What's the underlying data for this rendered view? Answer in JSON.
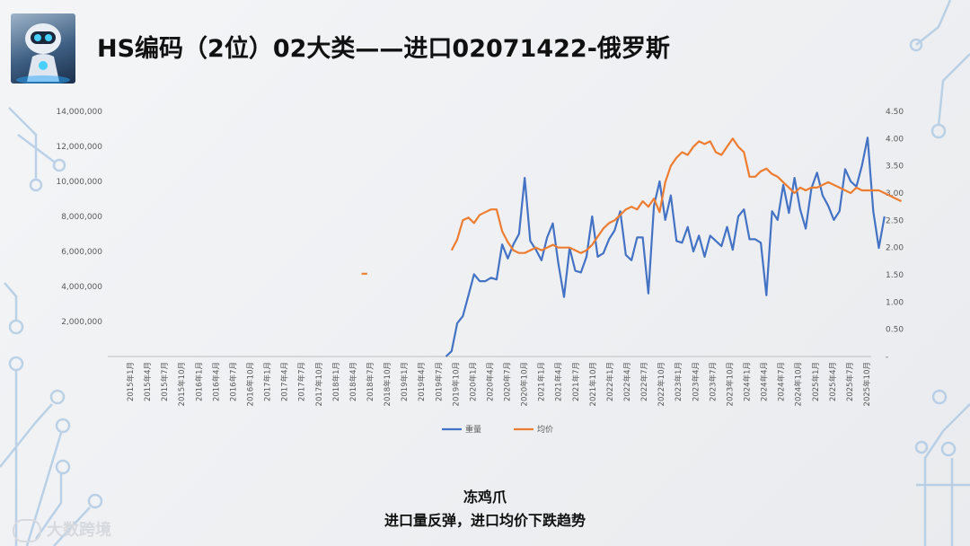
{
  "title": "HS编码（2位）02大类——进口02071422-俄罗斯",
  "caption": {
    "line1": "冻鸡爪",
    "line2": "进口量反弹，进口均价下跌趋势"
  },
  "brand_text": "大数跨境",
  "icons": [
    "robot-logo-icon",
    "circuit-decoration-icon",
    "brand-watermark-icon"
  ],
  "colors": {
    "weight": "#4472c4",
    "price": "#ed7d31"
  },
  "chart_data": {
    "type": "line",
    "x_labels": [
      "2015年1月",
      "2015年4月",
      "2015年7月",
      "2015年10月",
      "2016年1月",
      "2016年4月",
      "2016年7月",
      "2016年10月",
      "2017年1月",
      "2017年4月",
      "2017年7月",
      "2017年10月",
      "2018年1月",
      "2018年4月",
      "2018年7月",
      "2018年10月",
      "2019年1月",
      "2019年4月",
      "2019年7月",
      "2019年10月",
      "2020年1月",
      "2020年4月",
      "2020年7月",
      "2020年10月",
      "2021年1月",
      "2021年4月",
      "2021年7月",
      "2021年10月",
      "2022年1月",
      "2022年4月",
      "2022年7月",
      "2022年10月",
      "2023年1月",
      "2023年4月",
      "2023年7月",
      "2023年10月",
      "2024年1月",
      "2024年4月",
      "2024年7月",
      "2024年10月",
      "2025年1月",
      "2025年4月",
      "2025年7月",
      "2025年10月"
    ],
    "y_left": {
      "ticks": [
        "2,000,000",
        "4,000,000",
        "6,000,000",
        "8,000,000",
        "10,000,000",
        "12,000,000",
        "14,000,000"
      ],
      "range": [
        0,
        14000000
      ]
    },
    "y_right": {
      "ticks": [
        "-",
        "0.50",
        "1.00",
        "1.50",
        "2.00",
        "2.50",
        "3.00",
        "3.50",
        "4.00",
        "4.50"
      ],
      "range": [
        0,
        4.5
      ]
    },
    "legend_position": "bottom",
    "series": [
      {
        "name": "重量",
        "axis": "left",
        "values": [
          null,
          null,
          null,
          null,
          null,
          null,
          null,
          null,
          null,
          null,
          null,
          null,
          null,
          null,
          null,
          null,
          null,
          null,
          null,
          null,
          null,
          null,
          null,
          null,
          null,
          null,
          null,
          null,
          null,
          null,
          null,
          null,
          null,
          null,
          null,
          null,
          null,
          null,
          null,
          null,
          null,
          30000,
          null,
          null,
          null,
          null,
          null,
          null,
          null,
          null,
          null,
          null,
          null,
          null,
          null,
          null,
          0,
          300000,
          1900000,
          2300000,
          3500000,
          4700000,
          4300000,
          4300000,
          4500000,
          4400000,
          6400000,
          5600000,
          6400000,
          7000000,
          10200000,
          6600000,
          6100000,
          5500000,
          6800000,
          7600000,
          5300000,
          3400000,
          6200000,
          4900000,
          4800000,
          5700000,
          8000000,
          5700000,
          5900000,
          6700000,
          7200000,
          8300000,
          5800000,
          5500000,
          6800000,
          6800000,
          3600000,
          8600000,
          10000000,
          7800000,
          9200000,
          6600000,
          6500000,
          7400000,
          6000000,
          6900000,
          5700000,
          6900000,
          6600000,
          6300000,
          7400000,
          6100000,
          8000000,
          8400000,
          6700000,
          6700000,
          6500000,
          3500000,
          8300000,
          7800000,
          9800000,
          8200000,
          10200000,
          8400000,
          7300000,
          9600000,
          10500000,
          9200000,
          8600000,
          7800000,
          8300000,
          10700000,
          10000000,
          9700000,
          10900000,
          12500000,
          8300000,
          6200000,
          8000000
        ]
      },
      {
        "name": "均价",
        "axis": "right",
        "values": [
          null,
          null,
          null,
          null,
          null,
          null,
          null,
          null,
          null,
          null,
          null,
          null,
          null,
          null,
          null,
          null,
          null,
          null,
          null,
          null,
          null,
          null,
          null,
          null,
          null,
          null,
          null,
          null,
          null,
          null,
          null,
          null,
          null,
          null,
          null,
          null,
          null,
          null,
          null,
          null,
          null,
          1.52,
          1.52,
          null,
          null,
          null,
          null,
          null,
          null,
          null,
          null,
          null,
          null,
          null,
          null,
          null,
          null,
          1.95,
          2.15,
          2.5,
          2.55,
          2.45,
          2.6,
          2.65,
          2.7,
          2.7,
          2.3,
          2.1,
          1.95,
          1.9,
          1.9,
          1.95,
          2.0,
          1.95,
          2.0,
          2.05,
          2.0,
          2.0,
          2.0,
          1.95,
          1.9,
          1.95,
          2.05,
          2.2,
          2.35,
          2.45,
          2.5,
          2.6,
          2.7,
          2.75,
          2.7,
          2.85,
          2.75,
          2.9,
          2.65,
          3.2,
          3.5,
          3.65,
          3.75,
          3.7,
          3.85,
          3.95,
          3.9,
          3.95,
          3.75,
          3.7,
          3.85,
          4.0,
          3.85,
          3.75,
          3.3,
          3.3,
          3.4,
          3.45,
          3.35,
          3.3,
          3.2,
          3.1,
          3.0,
          3.1,
          3.05,
          3.1,
          3.1,
          3.15,
          3.2,
          3.15,
          3.1,
          3.05,
          3.0,
          3.1,
          3.05,
          3.05,
          3.05,
          3.05,
          3.0,
          2.95,
          2.9,
          2.85
        ]
      }
    ]
  }
}
